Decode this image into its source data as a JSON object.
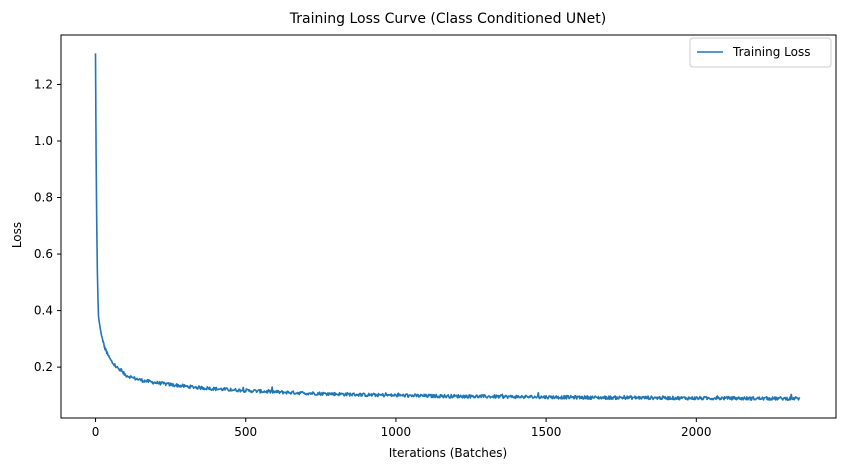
{
  "chart_data": {
    "type": "line",
    "title": "Training Loss Curve (Class Conditioned UNet)",
    "xlabel": "Iterations (Batches)",
    "ylabel": "Loss",
    "xlim": [
      -115,
      2465
    ],
    "ylim": [
      0.02,
      1.375
    ],
    "x_ticks": [
      0,
      500,
      1000,
      1500,
      2000
    ],
    "y_ticks": [
      0.2,
      0.4,
      0.6,
      0.8,
      1.0,
      1.2
    ],
    "grid": false,
    "legend_position": "top-right",
    "series": [
      {
        "name": "Training Loss",
        "color": "#1f77b4",
        "x": [
          0,
          2,
          4,
          6,
          8,
          10,
          15,
          20,
          30,
          40,
          50,
          60,
          80,
          100,
          130,
          160,
          200,
          250,
          300,
          350,
          400,
          500,
          600,
          700,
          800,
          900,
          1000,
          1100,
          1200,
          1300,
          1400,
          1500,
          1600,
          1700,
          1800,
          1900,
          2000,
          2100,
          2200,
          2345
        ],
        "values": [
          1.31,
          0.95,
          0.72,
          0.55,
          0.45,
          0.38,
          0.34,
          0.31,
          0.27,
          0.245,
          0.225,
          0.21,
          0.19,
          0.172,
          0.16,
          0.152,
          0.145,
          0.138,
          0.132,
          0.127,
          0.123,
          0.117,
          0.112,
          0.108,
          0.105,
          0.102,
          0.1,
          0.098,
          0.097,
          0.096,
          0.095,
          0.094,
          0.093,
          0.092,
          0.092,
          0.091,
          0.09,
          0.09,
          0.089,
          0.089
        ]
      }
    ]
  }
}
